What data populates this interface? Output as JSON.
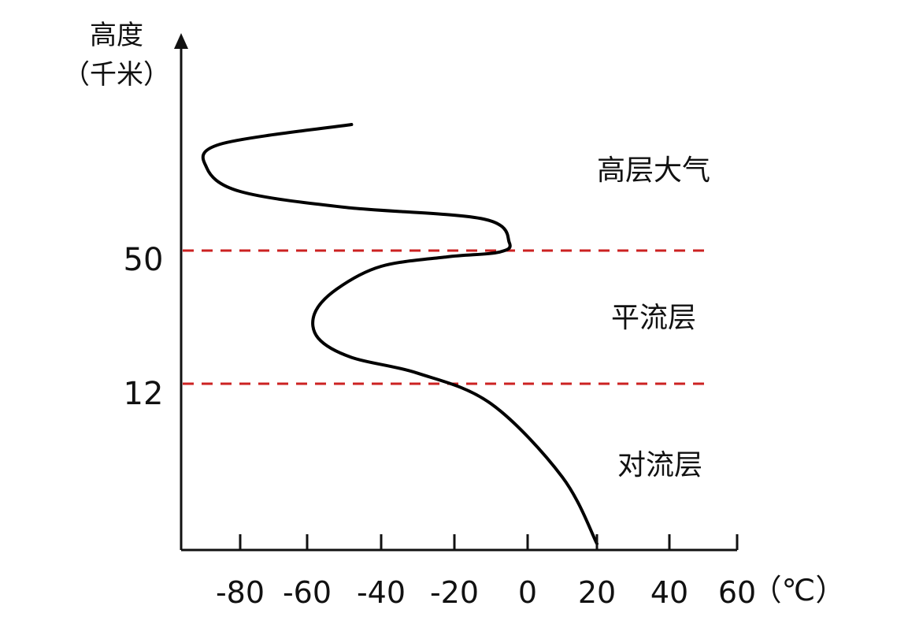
{
  "chart_data": {
    "type": "line",
    "ylabel_line1": "高度",
    "ylabel_line2": "（千米）",
    "xunit": "（℃）",
    "x_ticks": [
      -80,
      -60,
      -40,
      -20,
      0,
      20,
      40,
      60
    ],
    "x_tick_labels": [
      "-80",
      "-60",
      "-40",
      "-20",
      "0",
      "20",
      "40",
      "60"
    ],
    "xlim": [
      -100,
      60
    ],
    "y_tick_labels": [
      "50",
      "12"
    ],
    "boundaries": [
      {
        "name": "stratopause",
        "value": 50,
        "label": "50"
      },
      {
        "name": "tropopause",
        "value": 12,
        "label": "12"
      }
    ],
    "boundary_color": "#cc2222",
    "line_color": "#000000",
    "layers": [
      {
        "name": "upper-atmosphere",
        "label": "高层大气"
      },
      {
        "name": "stratosphere",
        "label": "平流层"
      },
      {
        "name": "troposphere",
        "label": "对流层"
      }
    ],
    "series": [
      {
        "points": [
          [
            20,
            0
          ],
          [
            10,
            5
          ],
          [
            -10,
            10.5
          ],
          [
            -30,
            15
          ],
          [
            -48,
            19.5
          ],
          [
            -57,
            25
          ],
          [
            -58,
            32
          ],
          [
            -52,
            39
          ],
          [
            -40,
            45.5
          ],
          [
            -22,
            48.2
          ],
          [
            -8,
            49.5
          ],
          [
            -5,
            52
          ],
          [
            -12,
            58
          ],
          [
            -50,
            61
          ],
          [
            -80,
            65
          ],
          [
            -90,
            71
          ],
          [
            -86,
            77
          ],
          [
            -48,
            82
          ]
        ]
      }
    ]
  }
}
